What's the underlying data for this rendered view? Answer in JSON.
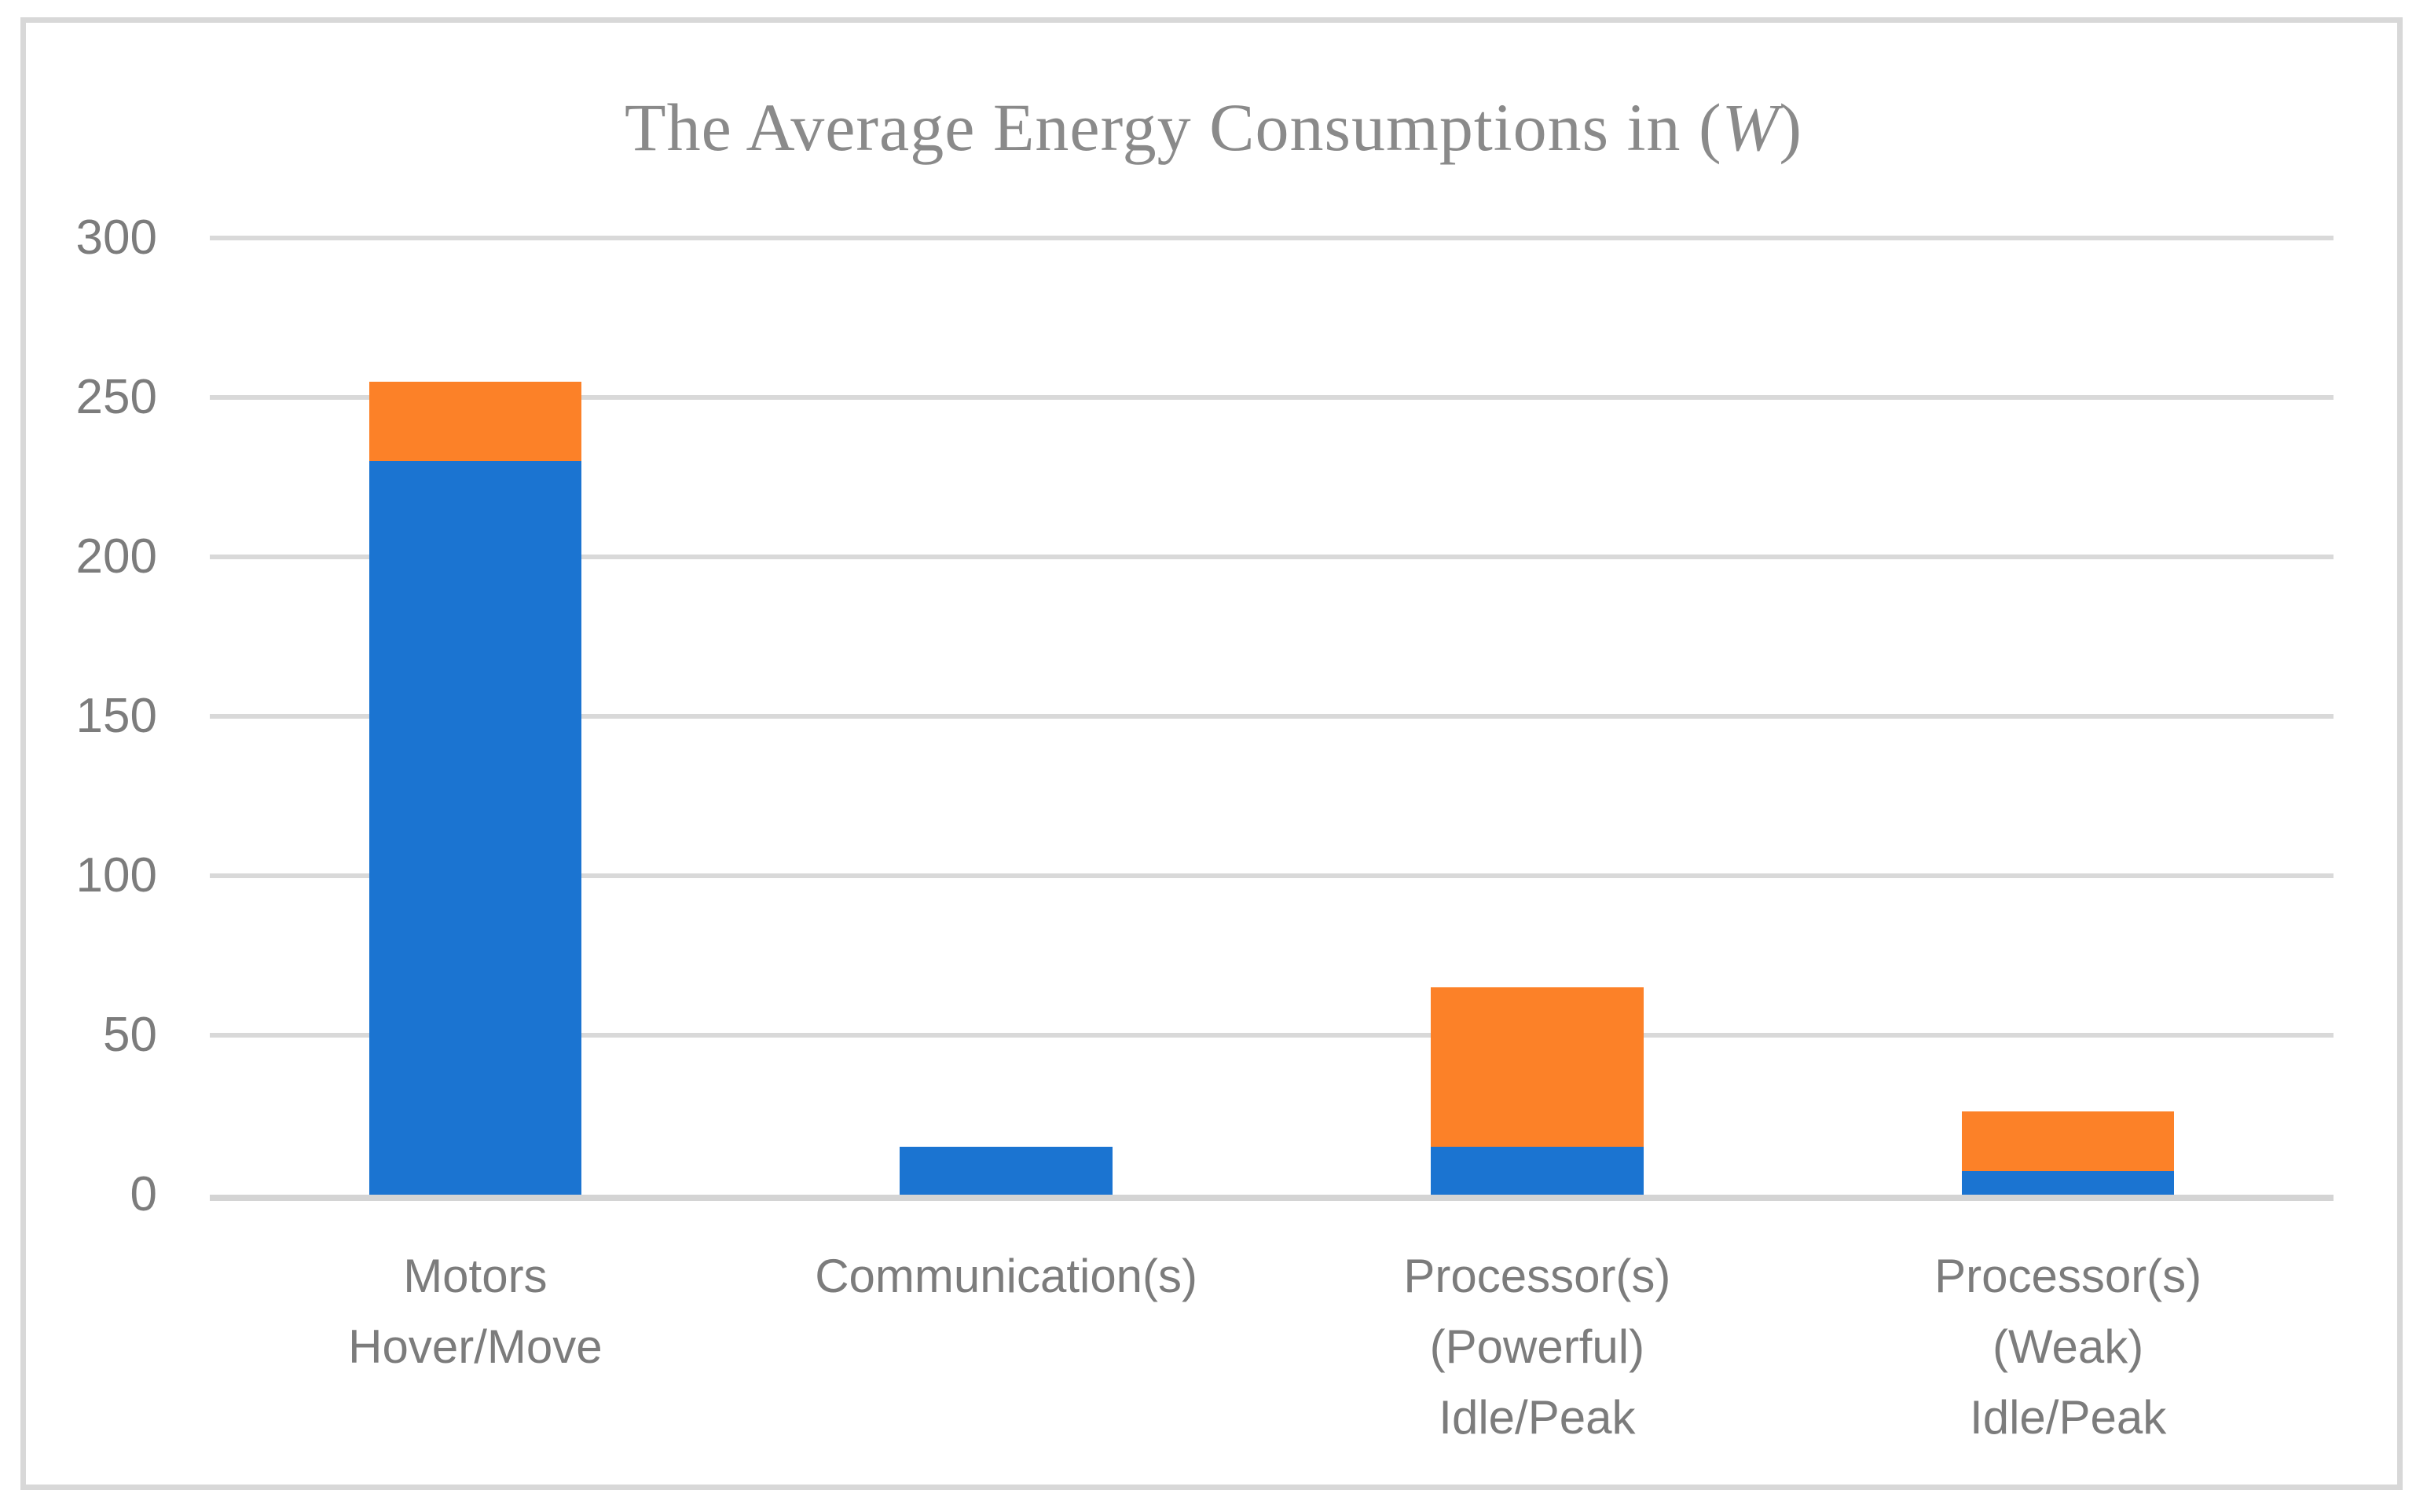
{
  "page": {
    "background": "#ffffff",
    "frame_border_color": "#D8D8D8"
  },
  "chart_data": {
    "type": "bar",
    "stacked": true,
    "title": "The Average Energy Consumptions in (W)",
    "title_parts": {
      "prefix": "The Average Energy Consumptions in (",
      "italic": "W",
      "suffix": ")"
    },
    "title_color": "#8A8A8A",
    "categories": [
      {
        "lines": [
          "Motors",
          "Hover/Move"
        ]
      },
      {
        "lines": [
          "Communication(s)"
        ]
      },
      {
        "lines": [
          "Processor(s)",
          "(Powerful)",
          "Idle/Peak"
        ]
      },
      {
        "lines": [
          "Processor(s)",
          "(Weak)",
          "Idle/Peak"
        ]
      }
    ],
    "series": [
      {
        "name": "blue",
        "color": "#1B74D1",
        "values": [
          230,
          15,
          15,
          7.5
        ]
      },
      {
        "name": "orange",
        "color": "#FC8128",
        "values": [
          25,
          0,
          50,
          18.5
        ]
      }
    ],
    "stack_totals": [
      255,
      15,
      65,
      26
    ],
    "ylim": [
      0,
      300
    ],
    "yticks": [
      0,
      50,
      100,
      150,
      200,
      250,
      300
    ],
    "xlabel": "",
    "ylabel": "",
    "grid": true,
    "gridline_color": "#D9D9D9",
    "axisline_color": "#D4D4D4",
    "tick_label_color": "#7C7C7C",
    "legend_position": "none"
  }
}
